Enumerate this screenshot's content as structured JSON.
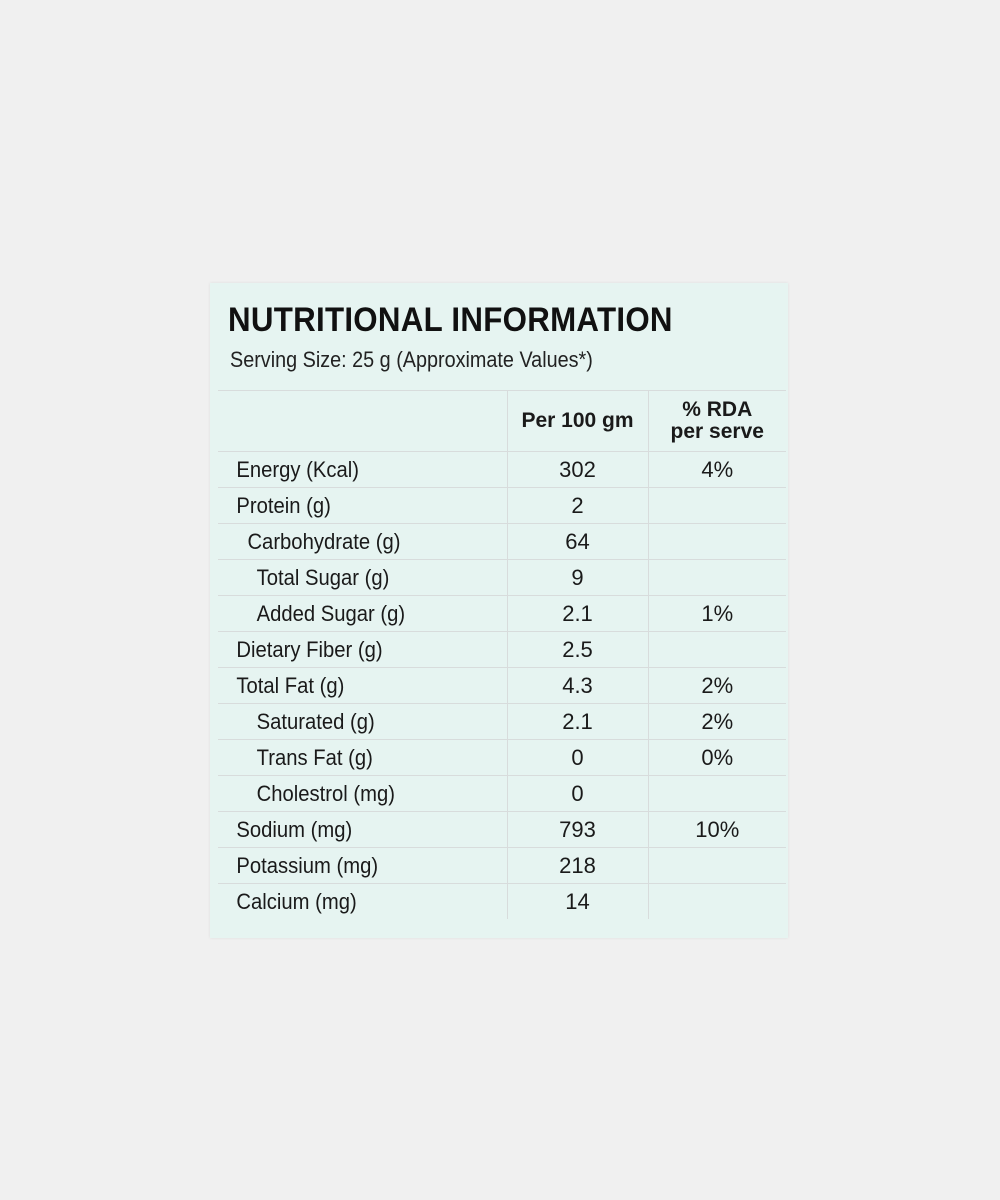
{
  "title": "NUTRITIONAL INFORMATION",
  "serving": "Serving Size: 25 g (Approximate Values*)",
  "columns": {
    "per100": "Per 100 gm",
    "rda_line1": "% RDA",
    "rda_line2": "per serve"
  },
  "rows": [
    {
      "name": "Energy (Kcal)",
      "per100": "302",
      "rda": "4%"
    },
    {
      "name": "Protein (g)",
      "per100": "2",
      "rda": ""
    },
    {
      "name": "Carbohydrate (g)",
      "per100": "64",
      "rda": ""
    },
    {
      "name": "Total Sugar (g)",
      "per100": "9",
      "rda": ""
    },
    {
      "name": "Added Sugar (g)",
      "per100": "2.1",
      "rda": "1%"
    },
    {
      "name": "Dietary Fiber (g)",
      "per100": "2.5",
      "rda": ""
    },
    {
      "name": "Total Fat (g)",
      "per100": "4.3",
      "rda": "2%"
    },
    {
      "name": "Saturated (g)",
      "per100": "2.1",
      "rda": "2%"
    },
    {
      "name": "Trans Fat (g)",
      "per100": "0",
      "rda": "0%"
    },
    {
      "name": "Cholestrol (mg)",
      "per100": "0",
      "rda": ""
    },
    {
      "name": "Sodium (mg)",
      "per100": "793",
      "rda": "10%"
    },
    {
      "name": "Potassium (mg)",
      "per100": "218",
      "rda": ""
    },
    {
      "name": "Calcium (mg)",
      "per100": "14",
      "rda": ""
    }
  ]
}
